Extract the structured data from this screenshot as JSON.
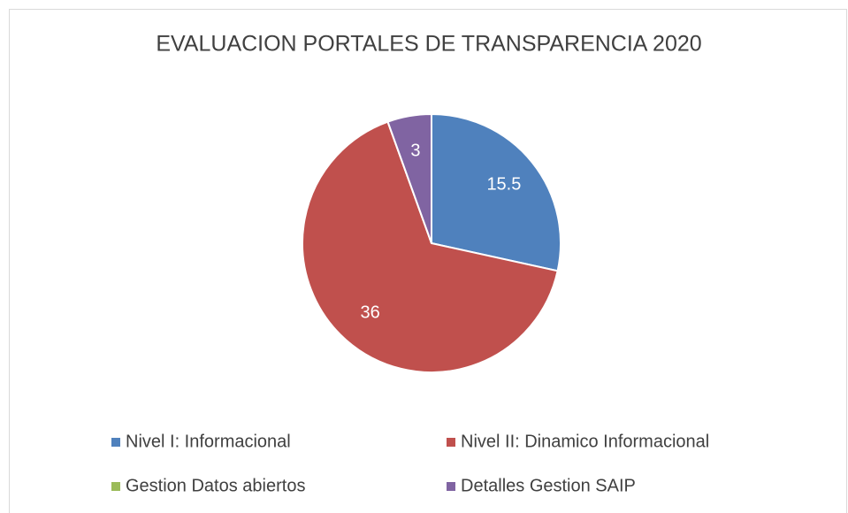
{
  "chart_data": {
    "type": "pie",
    "title": "EVALUACION PORTALES DE TRANSPARENCIA 2020",
    "categories": [
      "Nivel I: Informacional",
      "Nivel II: Dinamico Informacional",
      "Gestion Datos abiertos",
      "Detalles Gestion SAIP"
    ],
    "values": [
      15.5,
      36,
      0,
      3
    ],
    "colors": [
      "#4f81bd",
      "#c0504d",
      "#9bbb59",
      "#8064a2"
    ],
    "legend": "bottom"
  }
}
